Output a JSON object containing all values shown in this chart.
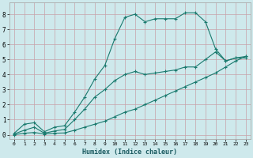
{
  "xlabel": "Humidex (Indice chaleur)",
  "background_color": "#cee9ec",
  "line_color": "#1a7a6e",
  "grid_color": "#b8d8dc",
  "xlim": [
    -0.5,
    23.5
  ],
  "ylim": [
    -0.3,
    8.8
  ],
  "xticks": [
    0,
    1,
    2,
    3,
    4,
    5,
    6,
    7,
    8,
    9,
    10,
    11,
    12,
    13,
    14,
    15,
    16,
    17,
    18,
    19,
    20,
    21,
    22,
    23
  ],
  "yticks": [
    0,
    1,
    2,
    3,
    4,
    5,
    6,
    7,
    8
  ],
  "series1_x": [
    0,
    1,
    2,
    3,
    4,
    5,
    6,
    7,
    8,
    9,
    10,
    11,
    12,
    13,
    14,
    15,
    16,
    17,
    18,
    19,
    20,
    21,
    22,
    23
  ],
  "series1_y": [
    0.1,
    0.7,
    0.8,
    0.2,
    0.5,
    0.6,
    1.5,
    2.5,
    3.7,
    4.6,
    6.4,
    7.8,
    8.0,
    7.5,
    7.7,
    7.7,
    7.7,
    8.1,
    8.1,
    7.5,
    5.7,
    4.9,
    5.1,
    5.1
  ],
  "series2_x": [
    0,
    1,
    2,
    3,
    4,
    5,
    6,
    7,
    8,
    9,
    10,
    11,
    12,
    13,
    14,
    15,
    16,
    17,
    18,
    19,
    20,
    21,
    22,
    23
  ],
  "series2_y": [
    0.05,
    0.3,
    0.5,
    0.1,
    0.25,
    0.35,
    1.0,
    1.7,
    2.5,
    3.0,
    3.6,
    4.0,
    4.2,
    4.0,
    4.1,
    4.2,
    4.3,
    4.5,
    4.5,
    5.0,
    5.5,
    4.9,
    5.1,
    5.2
  ],
  "series3_x": [
    0,
    1,
    2,
    3,
    4,
    5,
    6,
    7,
    8,
    9,
    10,
    11,
    12,
    13,
    14,
    15,
    16,
    17,
    18,
    19,
    20,
    21,
    22,
    23
  ],
  "series3_y": [
    0.0,
    0.1,
    0.15,
    0.05,
    0.1,
    0.12,
    0.3,
    0.5,
    0.7,
    0.9,
    1.2,
    1.5,
    1.7,
    2.0,
    2.3,
    2.6,
    2.9,
    3.2,
    3.5,
    3.8,
    4.1,
    4.5,
    4.9,
    5.2
  ]
}
